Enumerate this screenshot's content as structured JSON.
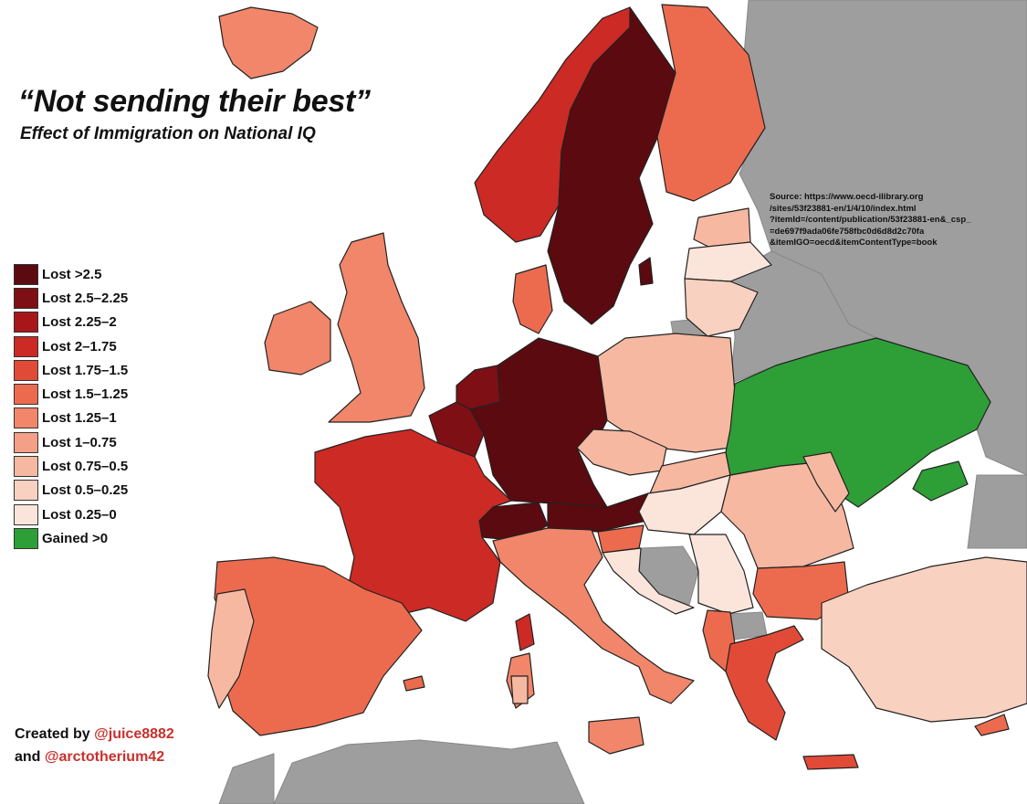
{
  "title": "“Not sending their best”",
  "subtitle": "Effect of Immigration on National IQ",
  "legend": [
    {
      "label": "Lost >2.5",
      "color": "#5b0a10"
    },
    {
      "label": "Lost 2.5–2.25",
      "color": "#7e0f15"
    },
    {
      "label": "Lost 2.25–2",
      "color": "#a8161a"
    },
    {
      "label": "Lost 2–1.75",
      "color": "#cc2a25"
    },
    {
      "label": "Lost 1.75–1.5",
      "color": "#e24a38"
    },
    {
      "label": "Lost 1.5–1.25",
      "color": "#ec6b4f"
    },
    {
      "label": "Lost 1.25–1",
      "color": "#f1866a"
    },
    {
      "label": "Lost 1–0.75",
      "color": "#f4a086"
    },
    {
      "label": "Lost 0.75–0.5",
      "color": "#f6b8a1"
    },
    {
      "label": "Lost 0.5–0.25",
      "color": "#f9d1c0"
    },
    {
      "label": "Lost 0.25–0",
      "color": "#fbe5db"
    },
    {
      "label": "Gained >0",
      "color": "#2e9e37"
    }
  ],
  "source_lines": [
    "Source: https://www.oecd-ilibrary.org",
    "/sites/53f23881-en/1/4/10/index.html",
    "?itemId=/content/publication/53f23881-en&_csp_",
    "=de697f9ada06fe758fbc0d6d8d2c70fa",
    "&itemIGO=oecd&itemContentType=book"
  ],
  "credits": {
    "line1_prefix": "Created by",
    "line1_handle": "@juice8882",
    "line2_prefix": "and",
    "line2_handle": "@arctotherium42"
  },
  "nodata_color": "#9e9e9e"
}
